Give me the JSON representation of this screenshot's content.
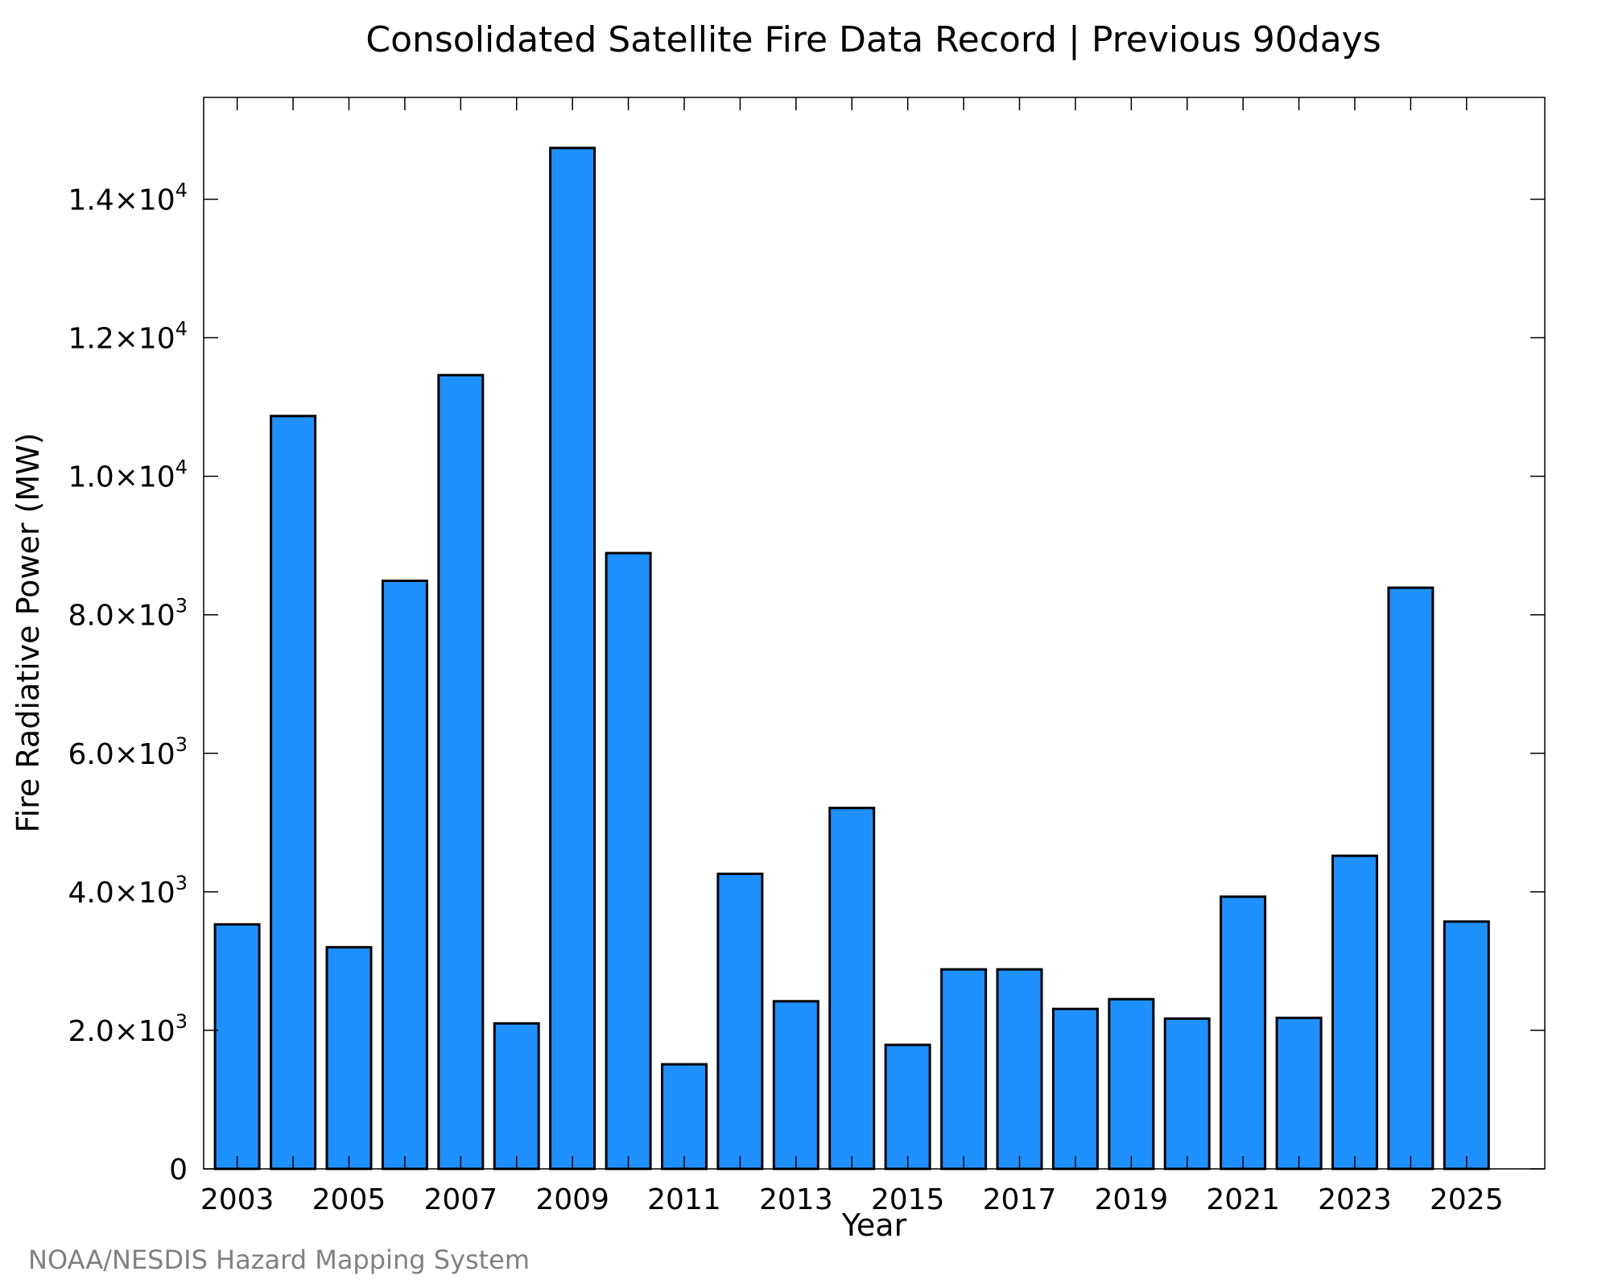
{
  "chart_data": {
    "type": "bar",
    "title": "Consolidated Satellite Fire Data Record | Previous 90days",
    "xlabel": "Year",
    "ylabel": "Fire Radiative Power (MW)",
    "categories": [
      "2003",
      "2004",
      "2005",
      "2006",
      "2007",
      "2008",
      "2009",
      "2010",
      "2011",
      "2012",
      "2013",
      "2014",
      "2015",
      "2016",
      "2017",
      "2018",
      "2019",
      "2020",
      "2021",
      "2022",
      "2023",
      "2024",
      "2025"
    ],
    "values": [
      3530,
      10870,
      3200,
      8490,
      11460,
      2100,
      14740,
      8890,
      1510,
      4260,
      2420,
      5210,
      1790,
      2880,
      2880,
      2310,
      2450,
      2170,
      3930,
      2180,
      4520,
      8390,
      3570
    ],
    "x_tick_labels": [
      "2003",
      "2005",
      "2007",
      "2009",
      "2011",
      "2013",
      "2015",
      "2017",
      "2019",
      "2021",
      "2023",
      "2025"
    ],
    "y_ticks": [
      {
        "value": 0,
        "mantissa": "0",
        "exponent": ""
      },
      {
        "value": 2000,
        "mantissa": "2.0×10",
        "exponent": "3"
      },
      {
        "value": 4000,
        "mantissa": "4.0×10",
        "exponent": "3"
      },
      {
        "value": 6000,
        "mantissa": "6.0×10",
        "exponent": "3"
      },
      {
        "value": 8000,
        "mantissa": "8.0×10",
        "exponent": "3"
      },
      {
        "value": 10000,
        "mantissa": "1.0×10",
        "exponent": "4"
      },
      {
        "value": 12000,
        "mantissa": "1.2×10",
        "exponent": "4"
      },
      {
        "value": 14000,
        "mantissa": "1.4×10",
        "exponent": "4"
      }
    ],
    "ylim": [
      0,
      15470
    ],
    "xlim": [
      2002.4,
      2026.4
    ],
    "bar_color": "#1e90ff",
    "grid": false,
    "legend": "none"
  },
  "credit": "NOAA/NESDIS Hazard Mapping System"
}
